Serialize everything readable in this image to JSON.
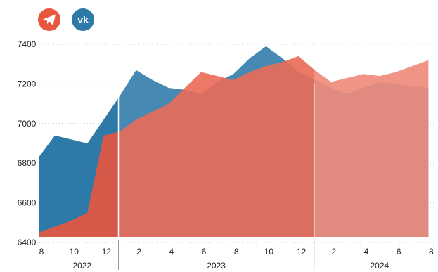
{
  "chart_data": {
    "type": "area",
    "title": "",
    "xlabel": "",
    "ylabel": "",
    "ylim": [
      6400,
      7400
    ],
    "yticks": [
      6400,
      6600,
      6800,
      7000,
      7200,
      7400
    ],
    "grid": true,
    "x": [
      "2022-08",
      "2022-09",
      "2022-10",
      "2022-11",
      "2022-12",
      "2023-01",
      "2023-02",
      "2023-03",
      "2023-04",
      "2023-05",
      "2023-06",
      "2023-07",
      "2023-08",
      "2023-09",
      "2023-10",
      "2023-11",
      "2023-12",
      "2024-01",
      "2024-02",
      "2024-03",
      "2024-04",
      "2024-05",
      "2024-06",
      "2024-07",
      "2024-08"
    ],
    "xtick_labels": [
      "8",
      "10",
      "12",
      "2",
      "4",
      "6",
      "8",
      "10",
      "12",
      "2",
      "4",
      "6",
      "8"
    ],
    "year_labels": [
      "2022",
      "2023",
      "2024"
    ],
    "legend": [
      {
        "icon": "telegram-icon",
        "color": "#e8573f"
      },
      {
        "icon": "vk-icon",
        "color": "#2d79a8"
      }
    ],
    "series": [
      {
        "icon": "vk-icon",
        "color": "#2d79a8",
        "values": [
          6830,
          6940,
          6920,
          6900,
          7020,
          7140,
          7270,
          7220,
          7180,
          7170,
          7150,
          7210,
          7250,
          7330,
          7390,
          7330,
          7260,
          7220,
          7180,
          7150,
          7180,
          7210,
          7200,
          7190,
          7180
        ]
      },
      {
        "icon": "telegram-icon",
        "color": "#e8573f",
        "values": [
          6450,
          6480,
          6510,
          6550,
          6940,
          6960,
          7020,
          7060,
          7100,
          7180,
          7260,
          7240,
          7220,
          7260,
          7290,
          7310,
          7340,
          7270,
          7210,
          7230,
          7250,
          7240,
          7260,
          7290,
          7320
        ]
      }
    ],
    "year_dividers": [
      "2023-01",
      "2024-01"
    ]
  }
}
